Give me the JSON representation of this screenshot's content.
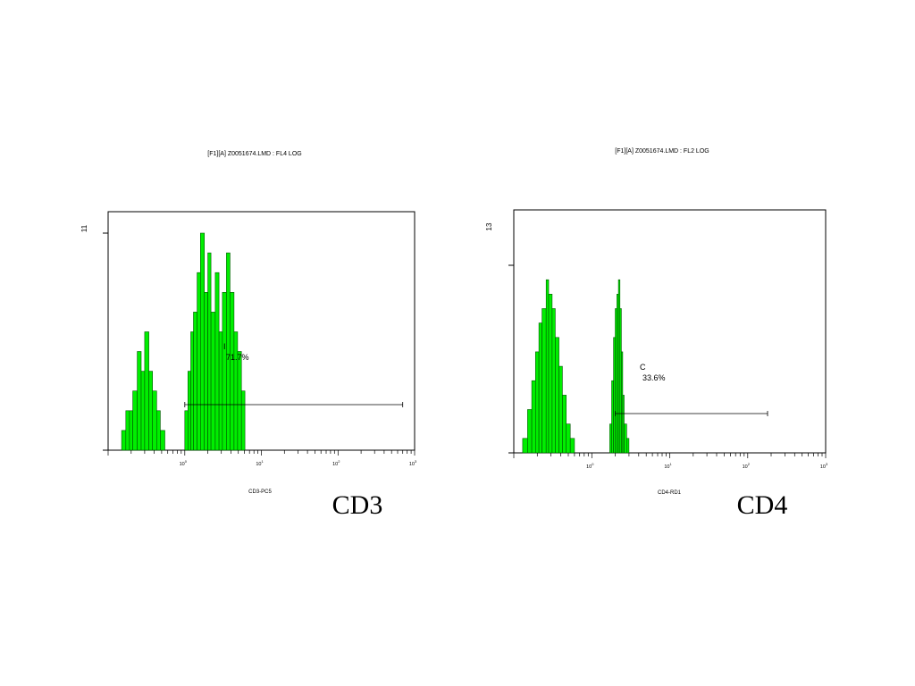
{
  "page": {
    "background": "#ffffff"
  },
  "panels": [
    {
      "id": "cd3",
      "caption": "CD3",
      "title": "[F1][A] Z0051674.LMD : FL4 LOG",
      "ymax_label": "11",
      "xlabel": "CD3-PC5",
      "gate": {
        "letter": "I",
        "percent": "71.7%"
      }
    },
    {
      "id": "cd4",
      "caption": "CD4",
      "title": "[F1][A] Z0051674.LMD : FL2 LOG",
      "ymax_label": "13",
      "xlabel": "CD4-RD1",
      "gate": {
        "letter": "C",
        "percent": "33.6%"
      }
    }
  ],
  "chart_data": [
    {
      "type": "area",
      "title": "[F1][A] Z0051674.LMD : FL4 LOG",
      "xlabel": "CD3-PC5",
      "ylabel": "",
      "x_scale": "log",
      "xlim": [
        0.1,
        1000
      ],
      "ylim": [
        0,
        11
      ],
      "x_ticks": [
        "10^0",
        "10^1",
        "10^2",
        "10^3"
      ],
      "y_ticks": [
        "11"
      ],
      "fill_color": "#00ee00",
      "gate": {
        "name": "I",
        "percent": 71.7,
        "range": [
          1,
          700
        ]
      },
      "series": [
        {
          "x": [
            0.15,
            0.17,
            0.19,
            0.21,
            0.24,
            0.27,
            0.3,
            0.34,
            0.38,
            0.43,
            0.48,
            0.55,
            0.9,
            1.0,
            1.1,
            1.2,
            1.3,
            1.45,
            1.6,
            1.8,
            2.0,
            2.2,
            2.5,
            2.8,
            3.1,
            3.5,
            3.9,
            4.4,
            4.9,
            5.5,
            6.1
          ],
          "values": [
            1,
            2,
            2,
            3,
            5,
            4,
            6,
            4,
            3,
            2,
            1,
            0,
            0,
            2,
            4,
            6,
            7,
            9,
            11,
            8,
            10,
            7,
            9,
            6,
            8,
            10,
            8,
            6,
            5,
            3,
            0
          ]
        }
      ]
    },
    {
      "type": "area",
      "title": "[F1][A] Z0051674.LMD : FL2 LOG",
      "xlabel": "CD4-RD1",
      "ylabel": "",
      "x_scale": "log",
      "xlim": [
        0.1,
        1000
      ],
      "ylim": [
        0,
        13
      ],
      "x_ticks": [
        "10^0",
        "10^1",
        "10^2",
        "10^3"
      ],
      "y_ticks": [
        "13"
      ],
      "fill_color": "#00ee00",
      "gate": {
        "name": "C",
        "percent": 33.6,
        "range": [
          2,
          180
        ]
      },
      "series": [
        {
          "x": [
            0.11,
            0.13,
            0.15,
            0.17,
            0.19,
            0.21,
            0.23,
            0.26,
            0.28,
            0.31,
            0.34,
            0.38,
            0.42,
            0.47,
            0.53,
            0.6,
            0.68,
            1.6,
            1.7,
            1.8,
            1.9,
            2.0,
            2.1,
            2.2,
            2.3,
            2.4,
            2.5,
            2.6,
            2.8,
            3.0
          ],
          "values": [
            0,
            1,
            3,
            5,
            7,
            9,
            10,
            12,
            11,
            10,
            8,
            6,
            4,
            2,
            1,
            0,
            0,
            0,
            2,
            5,
            8,
            10,
            11,
            12,
            10,
            7,
            4,
            2,
            1,
            0
          ]
        }
      ]
    }
  ]
}
